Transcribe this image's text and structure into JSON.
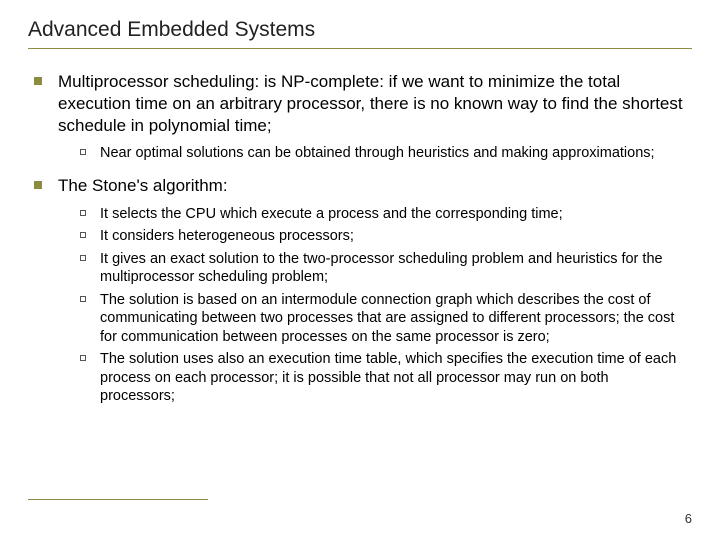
{
  "title": "Advanced Embedded Systems",
  "pageNumber": "6",
  "colors": {
    "accent": "#8b8c3f",
    "text": "#000000",
    "background": "#ffffff"
  },
  "items": [
    {
      "text": "Multiprocessor scheduling: is NP-complete: if we want to minimize the total execution time on an arbitrary processor, there is no known way to find the shortest schedule in polynomial time;",
      "sub": [
        "Near optimal solutions can be obtained through heuristics and making approximations;"
      ]
    },
    {
      "text": "The Stone's algorithm:",
      "sub": [
        "It selects the CPU which execute a process and the corresponding time;",
        "It considers heterogeneous processors;",
        "It gives an exact solution to the two-processor scheduling problem and heuristics for the multiprocessor scheduling problem;",
        "The solution is based on an intermodule connection graph which describes the cost of communicating between two processes that are assigned to different processors; the cost for communication between processes on the same processor is zero;",
        "The solution uses also an execution time table, which specifies the execution time of each process on each processor; it is possible that not all processor may run on both processors;"
      ]
    }
  ]
}
